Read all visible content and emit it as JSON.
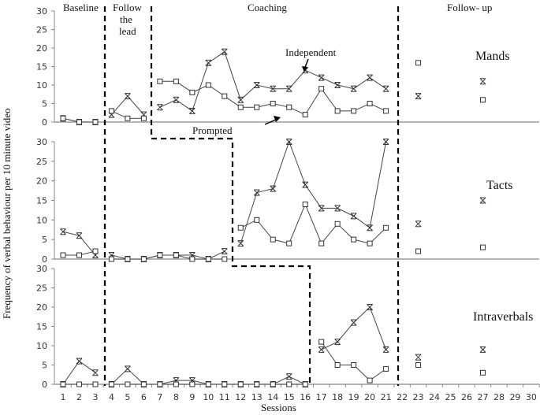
{
  "chart_data": {
    "type": "line",
    "title": "",
    "xlabel": "Sessions",
    "ylabel": "Frequency of verbal behaviour per 10 minute video",
    "x_ticks": [
      1,
      2,
      3,
      4,
      5,
      6,
      7,
      8,
      9,
      10,
      11,
      12,
      13,
      14,
      15,
      16,
      17,
      18,
      19,
      20,
      21,
      22,
      23,
      24,
      25,
      26,
      27,
      28,
      29,
      30
    ],
    "y_ticks": [
      0,
      5,
      10,
      15,
      20,
      25,
      30
    ],
    "ylim": [
      0,
      30
    ],
    "phases": [
      "Baseline",
      "Follow the lead",
      "Coaching",
      "Follow-up"
    ],
    "annotations": [
      "Independent",
      "Prompted"
    ],
    "marker_legend": {
      "independent": "asterisk",
      "prompted": "square"
    },
    "panels": [
      {
        "name": "Mands",
        "series": [
          {
            "name": "Independent",
            "marker": "asterisk",
            "segments": [
              {
                "x": [
                  1,
                  2,
                  3
                ],
                "y": [
                  1,
                  0,
                  0
                ]
              },
              {
                "x": [
                  4,
                  5,
                  6
                ],
                "y": [
                  2,
                  7,
                  2
                ]
              },
              {
                "x": [
                  7,
                  8,
                  9,
                  10,
                  11,
                  12,
                  13,
                  14,
                  15,
                  16,
                  17,
                  18,
                  19,
                  20,
                  21
                ],
                "y": [
                  4,
                  6,
                  3,
                  16,
                  19,
                  6,
                  10,
                  9,
                  9,
                  14,
                  12,
                  10,
                  9,
                  12,
                  9
                ]
              },
              {
                "x": [
                  23
                ],
                "y": [
                  7
                ]
              },
              {
                "x": [
                  27
                ],
                "y": [
                  11
                ]
              }
            ]
          },
          {
            "name": "Prompted",
            "marker": "square",
            "segments": [
              {
                "x": [
                  1,
                  2,
                  3
                ],
                "y": [
                  1,
                  0,
                  0
                ]
              },
              {
                "x": [
                  4,
                  5,
                  6
                ],
                "y": [
                  3,
                  1,
                  1
                ]
              },
              {
                "x": [
                  7,
                  8,
                  9,
                  10,
                  11,
                  12,
                  13,
                  14,
                  15,
                  16,
                  17,
                  18,
                  19,
                  20,
                  21
                ],
                "y": [
                  11,
                  11,
                  8,
                  10,
                  7,
                  4,
                  4,
                  5,
                  4,
                  2,
                  9,
                  3,
                  3,
                  5,
                  3
                ]
              },
              {
                "x": [
                  23
                ],
                "y": [
                  16
                ]
              },
              {
                "x": [
                  27
                ],
                "y": [
                  6
                ]
              }
            ]
          }
        ]
      },
      {
        "name": "Tacts",
        "series": [
          {
            "name": "Independent",
            "marker": "asterisk",
            "segments": [
              {
                "x": [
                  1,
                  2,
                  3
                ],
                "y": [
                  7,
                  6,
                  1
                ]
              },
              {
                "x": [
                  4,
                  5,
                  6,
                  7,
                  8,
                  9,
                  10,
                  11
                ],
                "y": [
                  1,
                  0,
                  0,
                  1,
                  1,
                  1,
                  0,
                  2
                ]
              },
              {
                "x": [
                  12,
                  13,
                  14,
                  15,
                  16,
                  17,
                  18,
                  19,
                  20,
                  21
                ],
                "y": [
                  4,
                  17,
                  18,
                  30,
                  19,
                  13,
                  13,
                  11,
                  8,
                  30
                ]
              },
              {
                "x": [
                  23
                ],
                "y": [
                  9
                ]
              },
              {
                "x": [
                  27
                ],
                "y": [
                  15
                ]
              }
            ]
          },
          {
            "name": "Prompted",
            "marker": "square",
            "segments": [
              {
                "x": [
                  1,
                  2,
                  3
                ],
                "y": [
                  1,
                  1,
                  2
                ]
              },
              {
                "x": [
                  4,
                  5,
                  6,
                  7,
                  8,
                  9,
                  10,
                  11
                ],
                "y": [
                  0,
                  0,
                  0,
                  1,
                  1,
                  0,
                  0,
                  0
                ]
              },
              {
                "x": [
                  12,
                  13,
                  14,
                  15,
                  16,
                  17,
                  18,
                  19,
                  20,
                  21
                ],
                "y": [
                  8,
                  10,
                  5,
                  4,
                  14,
                  4,
                  9,
                  5,
                  4,
                  8
                ]
              },
              {
                "x": [
                  23
                ],
                "y": [
                  2
                ]
              },
              {
                "x": [
                  27
                ],
                "y": [
                  3
                ]
              }
            ]
          }
        ]
      },
      {
        "name": "Intraverbals",
        "series": [
          {
            "name": "Independent",
            "marker": "asterisk",
            "segments": [
              {
                "x": [
                  1,
                  2,
                  3
                ],
                "y": [
                  0,
                  6,
                  3
                ]
              },
              {
                "x": [
                  4,
                  5,
                  6,
                  7,
                  8,
                  9,
                  10,
                  11,
                  12,
                  13,
                  14,
                  15,
                  16
                ],
                "y": [
                  0,
                  4,
                  0,
                  0,
                  1,
                  1,
                  0,
                  0,
                  0,
                  0,
                  0,
                  2,
                  0
                ]
              },
              {
                "x": [
                  17,
                  18,
                  19,
                  20,
                  21
                ],
                "y": [
                  9,
                  11,
                  16,
                  20,
                  9
                ]
              },
              {
                "x": [
                  23
                ],
                "y": [
                  7
                ]
              },
              {
                "x": [
                  27
                ],
                "y": [
                  9
                ]
              }
            ]
          },
          {
            "name": "Prompted",
            "marker": "square",
            "segments": [
              {
                "x": [
                  1,
                  2,
                  3
                ],
                "y": [
                  0,
                  0,
                  0
                ]
              },
              {
                "x": [
                  4,
                  5,
                  6,
                  7,
                  8,
                  9,
                  10,
                  11,
                  12,
                  13,
                  14,
                  15,
                  16
                ],
                "y": [
                  0,
                  0,
                  0,
                  0,
                  0,
                  0,
                  0,
                  0,
                  0,
                  0,
                  0,
                  0,
                  0
                ]
              },
              {
                "x": [
                  17,
                  18,
                  19,
                  20,
                  21
                ],
                "y": [
                  11,
                  5,
                  5,
                  1,
                  4
                ]
              },
              {
                "x": [
                  23
                ],
                "y": [
                  5
                ]
              },
              {
                "x": [
                  27
                ],
                "y": [
                  3
                ]
              }
            ]
          }
        ]
      }
    ]
  },
  "labels": {
    "baseline": "Baseline",
    "follow_the": "Follow",
    "follow_the2": "the",
    "follow_lead": "lead",
    "coaching": "Coaching",
    "follow_up": "Follow- up",
    "independent": "Independent",
    "prompted": "Prompted",
    "mands": "Mands",
    "tacts": "Tacts",
    "intraverbals": "Intraverbals",
    "xlabel": "Sessions",
    "ylabel": "Frequency of verbal behaviour per 10 minute video"
  }
}
